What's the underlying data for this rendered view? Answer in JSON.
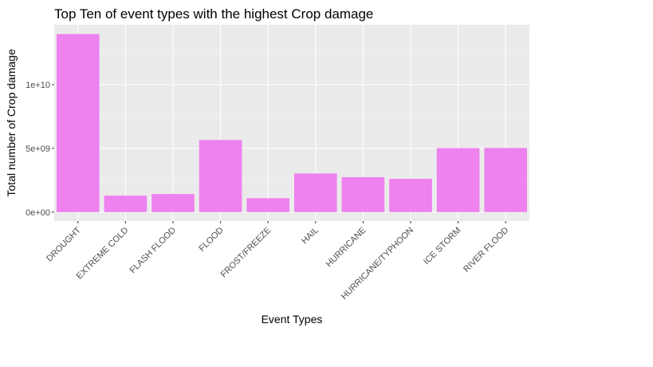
{
  "chart_data": {
    "type": "bar",
    "title": "Top Ten of event types with the highest Crop damage",
    "xlabel": "Event Types",
    "ylabel": "Total number of Crop damage",
    "categories": [
      "DROUGHT",
      "EXTREME COLD",
      "FLASH FLOOD",
      "FLOOD",
      "FROST/FREEZE",
      "HAIL",
      "HURRICANE",
      "HURRICANE/TYPHOON",
      "ICE STORM",
      "RIVER FLOOD"
    ],
    "values": [
      13970000000,
      1290000000,
      1420000000,
      5660000000,
      1090000000,
      3030000000,
      2740000000,
      2610000000,
      5020000000,
      5030000000
    ],
    "yticks": [
      0,
      5000000000,
      10000000000
    ],
    "ytick_labels": [
      "0e+00",
      "5e+09",
      "1e+10"
    ],
    "ylim": [
      -700000000,
      14700000000
    ],
    "grid": true,
    "colors": {
      "bar": "#ee82ee",
      "panel": "#ebebeb",
      "grid_major": "#ffffff",
      "grid_minor": "#f5f5f5"
    }
  }
}
